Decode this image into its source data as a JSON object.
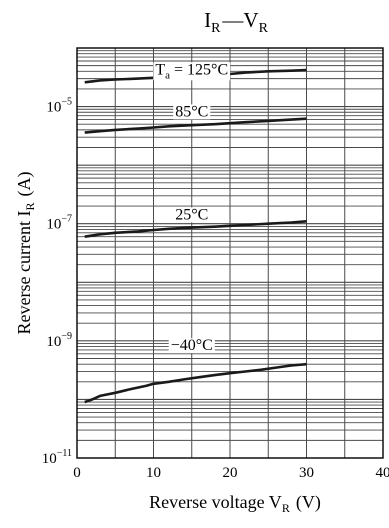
{
  "chart_data": {
    "type": "line",
    "title_main": "I",
    "title_sub": "R",
    "title_dash": "—",
    "title_main2": "V",
    "title_sub2": "R",
    "xlabel_text": "Reverse voltage  V",
    "xlabel_sub": "R",
    "xlabel_unit": "(V)",
    "ylabel_text": "Reverse current  I",
    "ylabel_sub": "R",
    "ylabel_unit": "(A)",
    "xlim": [
      0,
      40
    ],
    "ylim": [
      1e-11,
      0.0001
    ],
    "yscale": "log",
    "grid": true,
    "x_ticks": [
      {
        "value": 0,
        "label": "0"
      },
      {
        "value": 10,
        "label": "10"
      },
      {
        "value": 20,
        "label": "20"
      },
      {
        "value": 30,
        "label": "30"
      },
      {
        "value": 40,
        "label": "40"
      }
    ],
    "y_ticks": [
      {
        "value": 1e-11,
        "base": "10",
        "exp": "−11"
      },
      {
        "value": 1e-09,
        "base": "10",
        "exp": "−9"
      },
      {
        "value": 1e-07,
        "base": "10",
        "exp": "−7"
      },
      {
        "value": 1e-05,
        "base": "10",
        "exp": "−5"
      }
    ],
    "series": [
      {
        "name": "T_a = 125°C",
        "label_main": "T",
        "label_sub": "a",
        "label_rest": " = 125°C",
        "label_anchor_x": 15,
        "label_anchor_y": 4.5e-05,
        "x": [
          1,
          3,
          5,
          8,
          10,
          12,
          15,
          18,
          20,
          22,
          25,
          28,
          30
        ],
        "y": [
          2.6e-05,
          2.8e-05,
          2.9e-05,
          3e-05,
          3.1e-05,
          3.2e-05,
          3.3e-05,
          3.5e-05,
          3.6e-05,
          3.8e-05,
          4e-05,
          4.1e-05,
          4.2e-05
        ]
      },
      {
        "name": "85°C",
        "label_main": "85°C",
        "label_sub": "",
        "label_rest": "",
        "label_anchor_x": 15,
        "label_anchor_y": 8.6e-06,
        "x": [
          1,
          3,
          5,
          8,
          10,
          12,
          15,
          18,
          20,
          22,
          25,
          28,
          30
        ],
        "y": [
          3.6e-06,
          3.8e-06,
          4e-06,
          4.2e-06,
          4.4e-06,
          4.6e-06,
          4.8e-06,
          5e-06,
          5.2e-06,
          5.4e-06,
          5.7e-06,
          6e-06,
          6.2e-06
        ]
      },
      {
        "name": "25°C",
        "label_main": "25°C",
        "label_sub": "",
        "label_rest": "",
        "label_anchor_x": 15,
        "label_anchor_y": 1.5e-07,
        "x": [
          1,
          3,
          5,
          8,
          10,
          12,
          15,
          18,
          20,
          22,
          25,
          28,
          30
        ],
        "y": [
          6e-08,
          6.6e-08,
          7e-08,
          7.4e-08,
          7.8e-08,
          8.2e-08,
          8.6e-08,
          8.9e-08,
          9.2e-08,
          9.5e-08,
          1e-07,
          1.05e-07,
          1.1e-07
        ]
      },
      {
        "name": "−40°C",
        "label_main": "−40°C",
        "label_sub": "",
        "label_rest": "",
        "label_anchor_x": 15,
        "label_anchor_y": 8.8e-10,
        "x": [
          1,
          2,
          3,
          5,
          7,
          9,
          10,
          12,
          14,
          16,
          18,
          20,
          22,
          24,
          26,
          28,
          30
        ],
        "y": [
          9e-11,
          1e-10,
          1.15e-10,
          1.3e-10,
          1.5e-10,
          1.7e-10,
          1.85e-10,
          2e-10,
          2.2e-10,
          2.4e-10,
          2.6e-10,
          2.8e-10,
          3e-10,
          3.2e-10,
          3.5e-10,
          3.8e-10,
          4e-10
        ]
      }
    ],
    "colors": {
      "line": "#1a1a1a",
      "grid": "#4a4a4a",
      "axis": "#000000",
      "background": "#ffffff"
    }
  }
}
